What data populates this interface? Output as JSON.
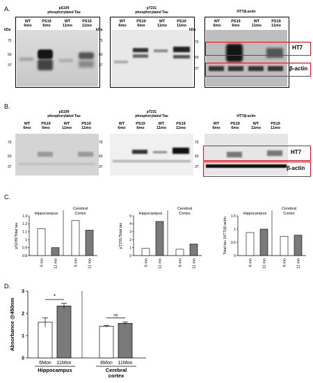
{
  "panels": {
    "A": "A.",
    "B": "B.",
    "C": "C.",
    "D": "D."
  },
  "kda_label": "kDa",
  "markers": {
    "A": [
      "75",
      "50",
      "37"
    ],
    "B": [
      "75",
      "50",
      "37"
    ]
  },
  "blot_titles": {
    "ps199": [
      "pS199",
      "phosphorylated Tau"
    ],
    "pt231": [
      "pT231",
      "phosphorylated Tau"
    ],
    "ht7": "HT7/β-actin",
    "pt231_b": "pT231"
  },
  "lanes": [
    {
      "group": "WT",
      "age": "6mo"
    },
    {
      "group": "PS19",
      "age": "6mo"
    },
    {
      "group": "WT",
      "age": "11mo"
    },
    {
      "group": "PS19",
      "age": "11mo"
    }
  ],
  "band_labels": {
    "ht7": "HT7",
    "actin": "β-actin"
  },
  "regions": {
    "hippocampus": "Hippocampus",
    "cortex": [
      "Cerebral",
      "Cortex"
    ]
  },
  "age_ticks": [
    "6 mo",
    "11 mo"
  ],
  "chart_data": [
    {
      "type": "bar",
      "panel": "C",
      "ylabel": "pS199/Total tau",
      "ylim": [
        0.8,
        1.3
      ],
      "yticks": [
        "0.8",
        "0.9",
        "1",
        "1.1",
        "1.2",
        "1.3"
      ],
      "groups": [
        "Hippocampus",
        "Cerebral Cortex"
      ],
      "categories": [
        "6 mo",
        "11 mo"
      ],
      "values": [
        [
          1.14,
          0.9
        ],
        [
          1.24,
          1.12
        ]
      ]
    },
    {
      "type": "bar",
      "panel": "C",
      "ylabel": "pT231/Total tau",
      "ylim": [
        0,
        5
      ],
      "yticks": [
        "0",
        "1",
        "2",
        "3",
        "4",
        "5"
      ],
      "groups": [
        "Hippocampus",
        "Cerebral Cortex"
      ],
      "categories": [
        "6 mo",
        "11 mo"
      ],
      "values": [
        [
          0.9,
          4.3
        ],
        [
          0.8,
          1.45
        ]
      ]
    },
    {
      "type": "bar",
      "panel": "C",
      "ylabel": "Total tau (HT7)/β-actin",
      "ylim": [
        0,
        1.5
      ],
      "yticks": [
        "0",
        "0.5",
        "1",
        "1.5"
      ],
      "groups": [
        "Hippocampus",
        "Cerebral Cortex"
      ],
      "categories": [
        "6 mo",
        "11 mo"
      ],
      "values": [
        [
          0.87,
          1.0
        ],
        [
          0.73,
          0.77
        ]
      ]
    },
    {
      "type": "bar",
      "panel": "D",
      "ylabel": "Absorbance @450nm",
      "ylim": [
        0,
        3
      ],
      "yticks": [
        "0",
        "1",
        "2",
        "3"
      ],
      "categories": [
        "6Mon",
        "11Mon",
        "6Mon",
        "11Mon"
      ],
      "groups": [
        "Hippocampus",
        "Cerebral cortex"
      ],
      "values": [
        1.6,
        2.33,
        1.42,
        1.55
      ],
      "errors": [
        0.2,
        0.12,
        0.04,
        0.06
      ],
      "significance": [
        "*",
        "ns"
      ]
    }
  ]
}
